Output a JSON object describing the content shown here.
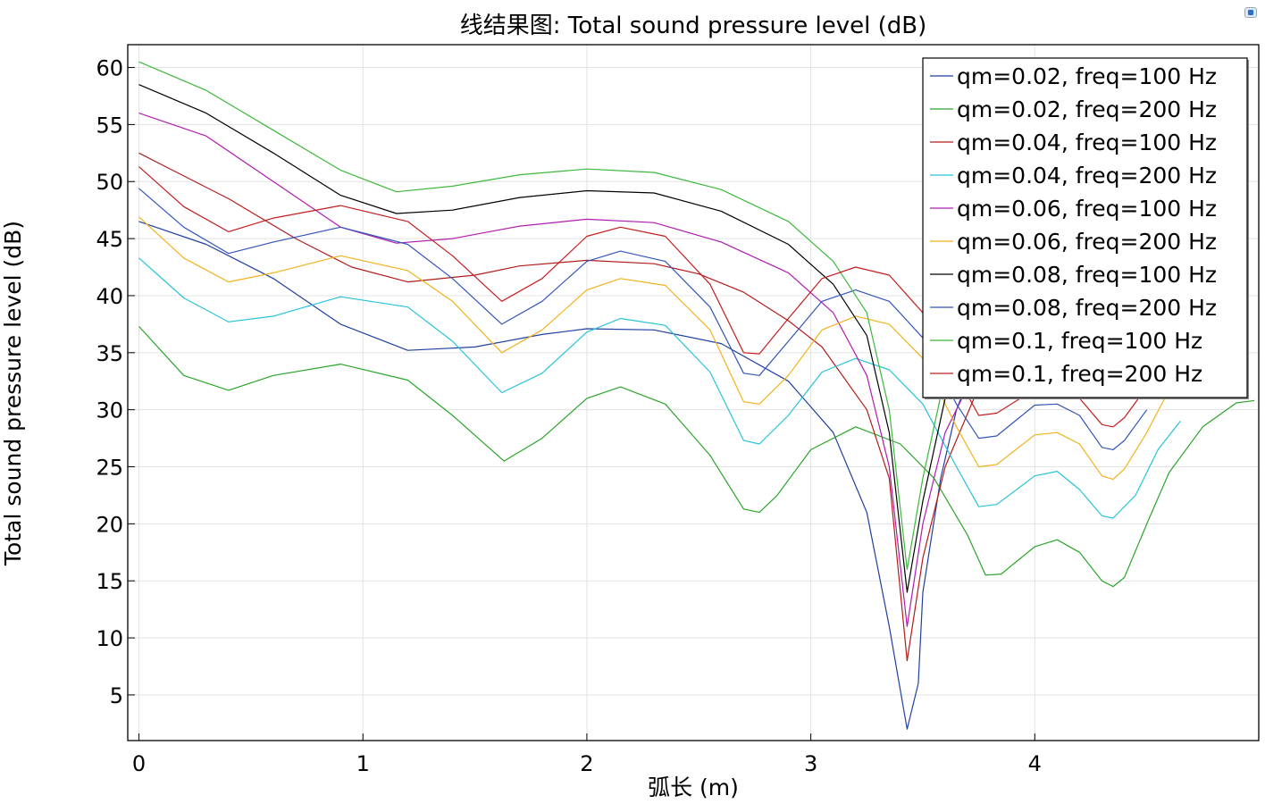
{
  "corner_icon": "plot-window-icon",
  "chart_data": {
    "type": "line",
    "title": "线结果图: Total sound pressure level (dB)",
    "xlabel": "弧长 (m)",
    "ylabel": "Total sound pressure level (dB)",
    "xlim": [
      -0.05,
      5.0
    ],
    "ylim": [
      1,
      62
    ],
    "xticks": [
      0,
      1,
      2,
      3,
      4
    ],
    "yticks": [
      5,
      10,
      15,
      20,
      25,
      30,
      35,
      40,
      45,
      50,
      55,
      60
    ],
    "grid": true,
    "legend_position": "top-right",
    "series": [
      {
        "name": "qm=0.02, freq=100 Hz",
        "color": "#1f3fa0",
        "points": [
          [
            0,
            46.5
          ],
          [
            0.3,
            44.5
          ],
          [
            0.6,
            41.5
          ],
          [
            0.9,
            37.5
          ],
          [
            1.2,
            35.2
          ],
          [
            1.5,
            35.5
          ],
          [
            1.8,
            36.6
          ],
          [
            2.0,
            37.1
          ],
          [
            2.3,
            37.0
          ],
          [
            2.6,
            35.8
          ],
          [
            2.9,
            32.5
          ],
          [
            3.1,
            28.0
          ],
          [
            3.25,
            21.0
          ],
          [
            3.35,
            11.0
          ],
          [
            3.43,
            2.0
          ],
          [
            3.48,
            6.0
          ],
          [
            3.5,
            14.0
          ],
          [
            3.58,
            24.0
          ],
          [
            3.65,
            30.0
          ],
          [
            3.75,
            35.0
          ],
          [
            3.87,
            39.0
          ]
        ]
      },
      {
        "name": "qm=0.02, freq=200 Hz",
        "color": "#2aa52a",
        "points": [
          [
            0,
            37.3
          ],
          [
            0.2,
            33.0
          ],
          [
            0.4,
            31.7
          ],
          [
            0.6,
            33.0
          ],
          [
            0.9,
            34.0
          ],
          [
            1.2,
            32.6
          ],
          [
            1.4,
            29.5
          ],
          [
            1.63,
            25.5
          ],
          [
            1.8,
            27.5
          ],
          [
            2.0,
            31.0
          ],
          [
            2.15,
            32.0
          ],
          [
            2.35,
            30.5
          ],
          [
            2.55,
            26.0
          ],
          [
            2.7,
            21.3
          ],
          [
            2.77,
            21.0
          ],
          [
            2.85,
            22.5
          ],
          [
            3.0,
            26.5
          ],
          [
            3.2,
            28.5
          ],
          [
            3.4,
            27.0
          ],
          [
            3.55,
            24.0
          ],
          [
            3.7,
            19.0
          ],
          [
            3.78,
            15.5
          ],
          [
            3.85,
            15.6
          ],
          [
            4.0,
            18.0
          ],
          [
            4.1,
            18.6
          ],
          [
            4.2,
            17.5
          ],
          [
            4.3,
            15.0
          ],
          [
            4.35,
            14.5
          ],
          [
            4.4,
            15.3
          ],
          [
            4.5,
            20.0
          ],
          [
            4.6,
            24.5
          ],
          [
            4.75,
            28.5
          ],
          [
            4.9,
            30.6
          ],
          [
            4.98,
            30.8
          ]
        ]
      },
      {
        "name": "qm=0.04, freq=100 Hz",
        "color": "#b31b1b",
        "points": [
          [
            0,
            52.5
          ],
          [
            0.15,
            51.0
          ],
          [
            0.4,
            48.5
          ],
          [
            0.7,
            45.0
          ],
          [
            0.95,
            42.5
          ],
          [
            1.2,
            41.2
          ],
          [
            1.5,
            41.8
          ],
          [
            1.7,
            42.6
          ],
          [
            2.0,
            43.1
          ],
          [
            2.3,
            42.8
          ],
          [
            2.5,
            41.9
          ],
          [
            2.7,
            40.3
          ],
          [
            2.9,
            37.8
          ],
          [
            3.05,
            35.5
          ],
          [
            3.25,
            30.0
          ],
          [
            3.35,
            24.0
          ],
          [
            3.43,
            8.0
          ],
          [
            3.5,
            17.0
          ],
          [
            3.6,
            25.0
          ],
          [
            3.75,
            32.0
          ],
          [
            3.87,
            35.5
          ]
        ]
      },
      {
        "name": "qm=0.04, freq=200 Hz",
        "color": "#26c3d9",
        "points": [
          [
            0,
            43.3
          ],
          [
            0.2,
            39.8
          ],
          [
            0.4,
            37.7
          ],
          [
            0.6,
            38.2
          ],
          [
            0.9,
            39.9
          ],
          [
            1.2,
            39.0
          ],
          [
            1.4,
            36.0
          ],
          [
            1.62,
            31.5
          ],
          [
            1.8,
            33.2
          ],
          [
            2.0,
            36.8
          ],
          [
            2.15,
            38.0
          ],
          [
            2.35,
            37.4
          ],
          [
            2.55,
            33.3
          ],
          [
            2.7,
            27.3
          ],
          [
            2.77,
            27.0
          ],
          [
            2.9,
            29.5
          ],
          [
            3.05,
            33.3
          ],
          [
            3.2,
            34.5
          ],
          [
            3.35,
            33.5
          ],
          [
            3.5,
            30.5
          ],
          [
            3.65,
            25.0
          ],
          [
            3.75,
            21.5
          ],
          [
            3.83,
            21.7
          ],
          [
            4.0,
            24.2
          ],
          [
            4.1,
            24.6
          ],
          [
            4.2,
            23.0
          ],
          [
            4.3,
            20.7
          ],
          [
            4.35,
            20.5
          ],
          [
            4.45,
            22.5
          ],
          [
            4.55,
            26.5
          ],
          [
            4.65,
            29.0
          ]
        ]
      },
      {
        "name": "qm=0.06, freq=100 Hz",
        "color": "#b01cb0",
        "points": [
          [
            0,
            56.0
          ],
          [
            0.3,
            54.0
          ],
          [
            0.6,
            50.0
          ],
          [
            0.9,
            46.0
          ],
          [
            1.15,
            44.6
          ],
          [
            1.4,
            45.0
          ],
          [
            1.7,
            46.1
          ],
          [
            2.0,
            46.7
          ],
          [
            2.3,
            46.4
          ],
          [
            2.6,
            44.7
          ],
          [
            2.9,
            42.0
          ],
          [
            3.1,
            38.5
          ],
          [
            3.25,
            33.0
          ],
          [
            3.35,
            25.0
          ],
          [
            3.43,
            11.0
          ],
          [
            3.5,
            20.0
          ],
          [
            3.6,
            28.0
          ],
          [
            3.75,
            34.0
          ],
          [
            3.87,
            38.0
          ]
        ]
      },
      {
        "name": "qm=0.06, freq=200 Hz",
        "color": "#f2b21c",
        "points": [
          [
            0,
            46.9
          ],
          [
            0.2,
            43.3
          ],
          [
            0.4,
            41.2
          ],
          [
            0.6,
            42.0
          ],
          [
            0.9,
            43.5
          ],
          [
            1.2,
            42.2
          ],
          [
            1.4,
            39.5
          ],
          [
            1.62,
            35.0
          ],
          [
            1.8,
            37.0
          ],
          [
            2.0,
            40.5
          ],
          [
            2.15,
            41.5
          ],
          [
            2.35,
            40.9
          ],
          [
            2.55,
            37.0
          ],
          [
            2.7,
            30.7
          ],
          [
            2.77,
            30.5
          ],
          [
            2.9,
            33.0
          ],
          [
            3.05,
            37.0
          ],
          [
            3.2,
            38.2
          ],
          [
            3.35,
            37.5
          ],
          [
            3.5,
            34.5
          ],
          [
            3.65,
            28.5
          ],
          [
            3.75,
            25.0
          ],
          [
            3.83,
            25.2
          ],
          [
            4.0,
            27.8
          ],
          [
            4.1,
            28.0
          ],
          [
            4.2,
            27.0
          ],
          [
            4.3,
            24.2
          ],
          [
            4.35,
            23.9
          ],
          [
            4.4,
            24.8
          ],
          [
            4.5,
            28.0
          ],
          [
            4.58,
            31.0
          ]
        ]
      },
      {
        "name": "qm=0.08, freq=100 Hz",
        "color": "#000000",
        "points": [
          [
            0,
            58.5
          ],
          [
            0.3,
            56.0
          ],
          [
            0.6,
            52.5
          ],
          [
            0.9,
            48.8
          ],
          [
            1.15,
            47.2
          ],
          [
            1.4,
            47.5
          ],
          [
            1.7,
            48.6
          ],
          [
            2.0,
            49.2
          ],
          [
            2.3,
            49.0
          ],
          [
            2.6,
            47.4
          ],
          [
            2.9,
            44.5
          ],
          [
            3.1,
            41.0
          ],
          [
            3.25,
            36.5
          ],
          [
            3.35,
            28.0
          ],
          [
            3.43,
            14.0
          ],
          [
            3.5,
            22.0
          ],
          [
            3.6,
            31.0
          ],
          [
            3.75,
            37.5
          ],
          [
            3.87,
            41.0
          ]
        ]
      },
      {
        "name": "qm=0.08, freq=200 Hz",
        "color": "#3355bb",
        "points": [
          [
            0,
            49.4
          ],
          [
            0.2,
            46.0
          ],
          [
            0.4,
            43.7
          ],
          [
            0.6,
            44.7
          ],
          [
            0.9,
            46.0
          ],
          [
            1.2,
            44.5
          ],
          [
            1.4,
            41.5
          ],
          [
            1.62,
            37.5
          ],
          [
            1.8,
            39.5
          ],
          [
            2.0,
            43.0
          ],
          [
            2.15,
            43.9
          ],
          [
            2.35,
            43.0
          ],
          [
            2.55,
            39.0
          ],
          [
            2.7,
            33.2
          ],
          [
            2.77,
            33.0
          ],
          [
            2.9,
            36.0
          ],
          [
            3.05,
            39.5
          ],
          [
            3.2,
            40.5
          ],
          [
            3.35,
            39.5
          ],
          [
            3.5,
            36.3
          ],
          [
            3.65,
            30.5
          ],
          [
            3.75,
            27.5
          ],
          [
            3.83,
            27.7
          ],
          [
            4.0,
            30.4
          ],
          [
            4.1,
            30.5
          ],
          [
            4.2,
            29.5
          ],
          [
            4.3,
            26.7
          ],
          [
            4.35,
            26.5
          ],
          [
            4.4,
            27.3
          ],
          [
            4.5,
            30.0
          ]
        ]
      },
      {
        "name": "qm=0.1, freq=100 Hz",
        "color": "#3cb83c",
        "points": [
          [
            0,
            60.5
          ],
          [
            0.3,
            58.0
          ],
          [
            0.6,
            54.5
          ],
          [
            0.9,
            51.0
          ],
          [
            1.15,
            49.1
          ],
          [
            1.4,
            49.6
          ],
          [
            1.7,
            50.6
          ],
          [
            2.0,
            51.1
          ],
          [
            2.3,
            50.8
          ],
          [
            2.6,
            49.3
          ],
          [
            2.9,
            46.5
          ],
          [
            3.1,
            43.0
          ],
          [
            3.25,
            38.5
          ],
          [
            3.35,
            30.0
          ],
          [
            3.43,
            16.0
          ],
          [
            3.5,
            24.0
          ],
          [
            3.6,
            33.0
          ],
          [
            3.75,
            39.5
          ],
          [
            3.87,
            43.0
          ]
        ]
      },
      {
        "name": "qm=0.1, freq=200 Hz",
        "color": "#c41e1e",
        "points": [
          [
            0,
            51.3
          ],
          [
            0.2,
            47.8
          ],
          [
            0.4,
            45.6
          ],
          [
            0.6,
            46.8
          ],
          [
            0.9,
            47.9
          ],
          [
            1.2,
            46.5
          ],
          [
            1.4,
            43.5
          ],
          [
            1.62,
            39.5
          ],
          [
            1.8,
            41.5
          ],
          [
            2.0,
            45.2
          ],
          [
            2.15,
            46.0
          ],
          [
            2.35,
            45.2
          ],
          [
            2.55,
            41.0
          ],
          [
            2.7,
            35.0
          ],
          [
            2.77,
            34.9
          ],
          [
            2.9,
            38.0
          ],
          [
            3.05,
            41.5
          ],
          [
            3.2,
            42.5
          ],
          [
            3.35,
            41.8
          ],
          [
            3.5,
            38.5
          ],
          [
            3.65,
            33.0
          ],
          [
            3.75,
            29.5
          ],
          [
            3.83,
            29.7
          ],
          [
            4.0,
            31.8
          ],
          [
            4.1,
            32.0
          ],
          [
            4.2,
            31.0
          ],
          [
            4.3,
            28.7
          ],
          [
            4.35,
            28.5
          ],
          [
            4.4,
            29.3
          ],
          [
            4.5,
            32.0
          ]
        ]
      }
    ]
  }
}
